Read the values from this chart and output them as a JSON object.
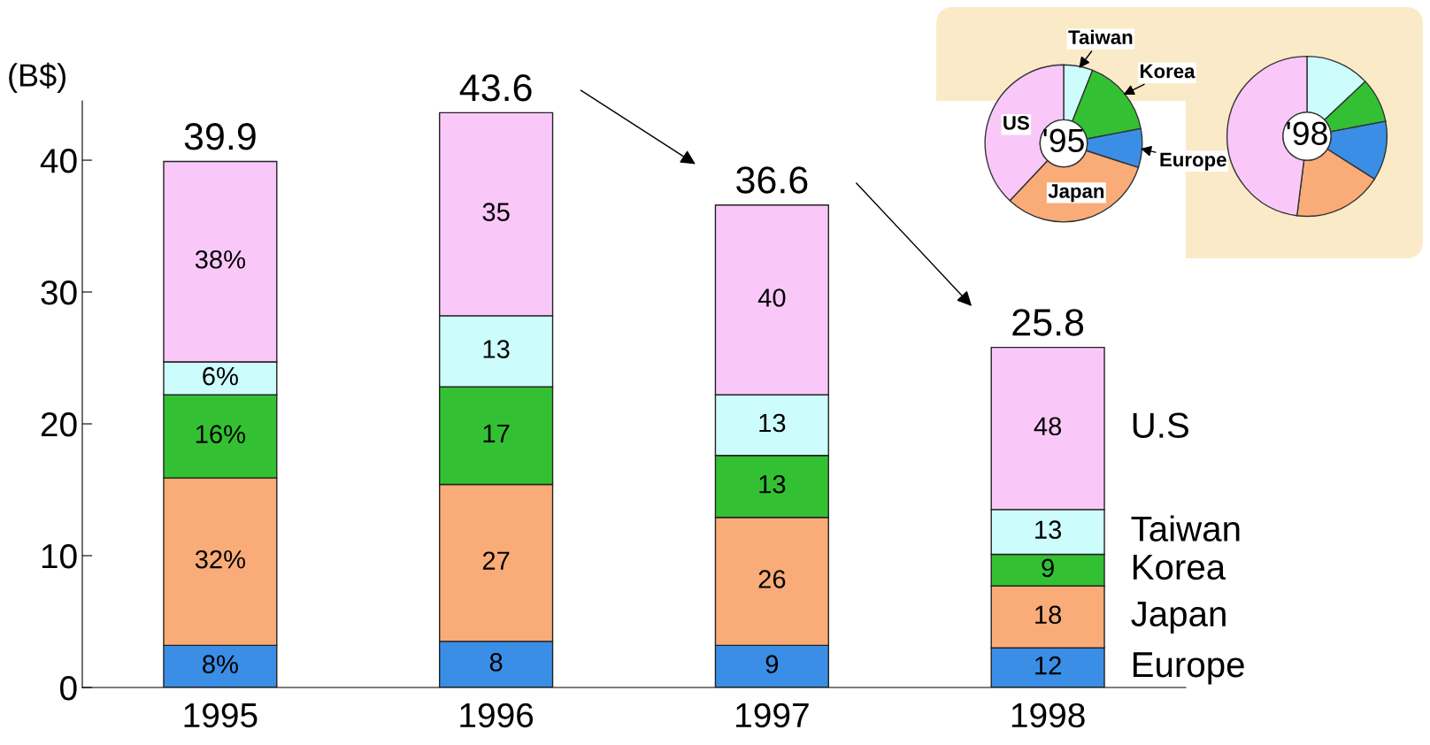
{
  "chart_data": [
    {
      "type": "bar",
      "stacked": true,
      "ylabel": "(B$)",
      "categories": [
        "1995",
        "1996",
        "1997",
        "1998"
      ],
      "ylim": [
        0,
        44.5
      ],
      "yticks": [
        0,
        10,
        20,
        30,
        40
      ],
      "grid": false,
      "legend": false,
      "series": [
        {
          "name": "Europe",
          "color": "#3a8ee6",
          "values": [
            3.2,
            3.5,
            3.2,
            3.0
          ]
        },
        {
          "name": "Japan",
          "color": "#f9ac78",
          "values": [
            12.7,
            11.9,
            9.7,
            4.7
          ]
        },
        {
          "name": "Korea",
          "color": "#33c133",
          "values": [
            6.3,
            7.4,
            4.7,
            2.4
          ]
        },
        {
          "name": "Taiwan",
          "color": "#ccfcfc",
          "values": [
            2.5,
            5.4,
            4.6,
            3.4
          ]
        },
        {
          "name": "U.S",
          "color": "#f9c8f9",
          "values": [
            15.2,
            15.4,
            14.4,
            12.3
          ]
        }
      ],
      "totals": [
        "39.9",
        "43.6",
        "36.6",
        "25.8"
      ],
      "annotations": [
        "8%",
        "32%",
        "16%",
        "6%",
        "38%",
        "8",
        "27",
        "17",
        "13",
        "35",
        "9",
        "26",
        "13",
        "13",
        "40",
        "12",
        "18",
        "9",
        "13",
        "48"
      ]
    },
    {
      "type": "donut",
      "title": "'95",
      "categories": [
        "Taiwan",
        "Korea",
        "Europe",
        "Japan",
        "US"
      ],
      "values": [
        6,
        16,
        8,
        32,
        38
      ],
      "colors": [
        "#ccfcfc",
        "#33c133",
        "#3a8ee6",
        "#f9ac78",
        "#f9c8f9"
      ]
    },
    {
      "type": "donut",
      "title": "'98",
      "categories": [
        null,
        null,
        null,
        null,
        null
      ],
      "values": [
        13,
        9,
        12,
        18,
        48
      ],
      "colors": [
        "#ccfcfc",
        "#33c133",
        "#3a8ee6",
        "#f9ac78",
        "#f9c8f9"
      ]
    }
  ]
}
